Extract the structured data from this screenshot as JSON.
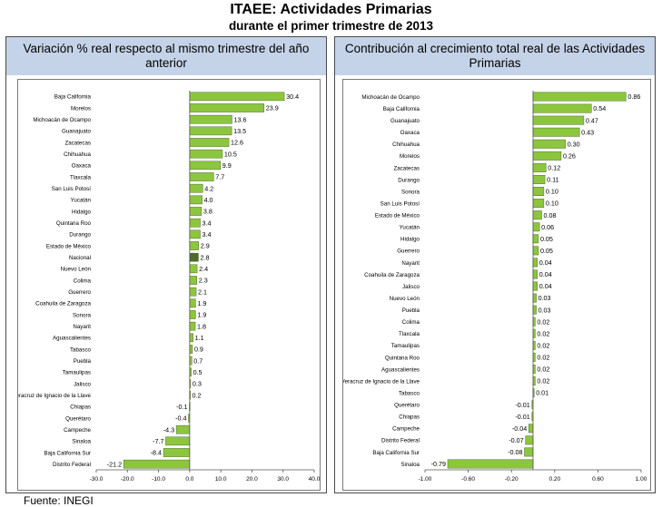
{
  "header": {
    "title": "ITAEE: Actividades Primarias",
    "subtitle": "durante el primer trimestre de 2013"
  },
  "source": "Fuente: INEGI",
  "colors": {
    "bar": "#8cc63f",
    "highlight": "#4d6b2a",
    "header_bg": "#c5d3e8"
  },
  "chart_data": [
    {
      "type": "bar",
      "orientation": "horizontal",
      "title": "Variación % real respecto al mismo trimestre del año anterior",
      "xlim": [
        -30,
        40
      ],
      "xticks": [
        -30,
        -20,
        -10,
        0,
        10,
        20,
        30,
        40
      ],
      "tick_labels": [
        "-30.0",
        "-20.0",
        "-10.0",
        "0.0",
        "10.0",
        "20.0",
        "30.0",
        "40.0"
      ],
      "decimals": 1,
      "highlight": "Nacional",
      "categories": [
        "Baja California",
        "Morelos",
        "Michoacán de Ocampo",
        "Guanajuato",
        "Zacatecas",
        "Chihuahua",
        "Oaxaca",
        "Tlaxcala",
        "San Luis Potosí",
        "Yucatán",
        "Hidalgo",
        "Quintana Roo",
        "Durango",
        "Estado de México",
        "Nacional",
        "Nuevo León",
        "Colima",
        "Guerrero",
        "Coahuila de Zaragoza",
        "Sonora",
        "Nayarit",
        "Aguascalientes",
        "Tabasco",
        "Puebla",
        "Tamaulipas",
        "Jalisco",
        "Veracruz de Ignacio de la Llave",
        "Chiapas",
        "Querétaro",
        "Campeche",
        "Sinaloa",
        "Baja California Sur",
        "Distrito Federal"
      ],
      "values": [
        30.4,
        23.9,
        13.6,
        13.5,
        12.6,
        10.5,
        9.9,
        7.7,
        4.2,
        4.0,
        3.8,
        3.4,
        3.4,
        2.9,
        2.8,
        2.4,
        2.3,
        2.1,
        1.9,
        1.9,
        1.8,
        1.1,
        0.9,
        0.7,
        0.5,
        0.3,
        0.2,
        -0.1,
        -0.4,
        -4.3,
        -7.7,
        -8.4,
        -21.2
      ]
    },
    {
      "type": "bar",
      "orientation": "horizontal",
      "title": "Contribución al crecimiento total real de las Actividades Primarias",
      "xlim": [
        -1,
        1
      ],
      "xticks": [
        -1.0,
        -0.6,
        -0.2,
        0.2,
        0.6,
        1.0
      ],
      "tick_labels": [
        "-1.00",
        "-0.60",
        "-0.20",
        "0.20",
        "0.60",
        "1.00"
      ],
      "decimals": 2,
      "highlight": "",
      "categories": [
        "Michoacán de Ocampo",
        "Baja California",
        "Guanajuato",
        "Oaxaca",
        "Chihuahua",
        "Morelos",
        "Zacatecas",
        "Durango",
        "Sonora",
        "San Luis Potosí",
        "Estado de México",
        "Yucatán",
        "Hidalgo",
        "Guerrero",
        "Nayarit",
        "Coahuila de Zaragoza",
        "Jalisco",
        "Nuevo León",
        "Puebla",
        "Colima",
        "Tlaxcala",
        "Tamaulipas",
        "Quintana Roo",
        "Aguascalientes",
        "Veracruz de Ignacio de la Llave",
        "Tabasco",
        "Querétaro",
        "Chiapas",
        "Campeche",
        "Distrito Federal",
        "Baja California Sur",
        "Sinaloa"
      ],
      "values": [
        0.86,
        0.54,
        0.47,
        0.43,
        0.3,
        0.26,
        0.12,
        0.11,
        0.1,
        0.1,
        0.08,
        0.06,
        0.05,
        0.05,
        0.04,
        0.04,
        0.04,
        0.03,
        0.03,
        0.02,
        0.02,
        0.02,
        0.02,
        0.02,
        0.02,
        0.01,
        -0.01,
        -0.01,
        -0.04,
        -0.07,
        -0.08,
        -0.79
      ]
    }
  ]
}
